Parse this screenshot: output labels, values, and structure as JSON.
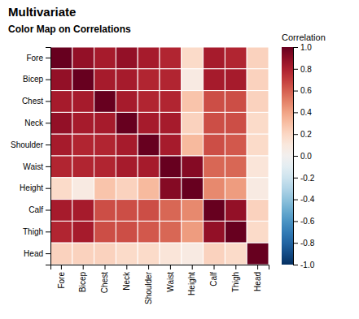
{
  "chart_data": {
    "type": "heatmap",
    "title": "Multivariate",
    "subtitle": "Color Map on Correlations",
    "categories": [
      "Fore",
      "Bicep",
      "Chest",
      "Neck",
      "Shoulder",
      "Waist",
      "Height",
      "Calf",
      "Thigh",
      "Head"
    ],
    "cells": [
      [
        1.0,
        0.88,
        0.82,
        0.88,
        0.82,
        0.78,
        0.18,
        0.82,
        0.78,
        0.22
      ],
      [
        0.88,
        1.0,
        0.82,
        0.82,
        0.78,
        0.78,
        0.08,
        0.82,
        0.82,
        0.22
      ],
      [
        0.82,
        0.82,
        1.0,
        0.82,
        0.78,
        0.78,
        0.28,
        0.65,
        0.65,
        0.22
      ],
      [
        0.88,
        0.82,
        0.82,
        1.0,
        0.82,
        0.82,
        0.22,
        0.65,
        0.65,
        0.18
      ],
      [
        0.82,
        0.78,
        0.78,
        0.82,
        1.0,
        0.82,
        0.32,
        0.65,
        0.62,
        0.18
      ],
      [
        0.78,
        0.78,
        0.78,
        0.82,
        0.82,
        1.0,
        0.92,
        0.58,
        0.58,
        0.12
      ],
      [
        0.18,
        0.08,
        0.28,
        0.22,
        0.32,
        0.92,
        1.0,
        0.48,
        0.42,
        0.08
      ],
      [
        0.82,
        0.82,
        0.65,
        0.65,
        0.65,
        0.58,
        0.48,
        1.0,
        0.88,
        0.22
      ],
      [
        0.78,
        0.82,
        0.65,
        0.65,
        0.62,
        0.58,
        0.42,
        0.88,
        1.0,
        0.18
      ],
      [
        0.22,
        0.22,
        0.22,
        0.18,
        0.18,
        0.12,
        0.08,
        0.22,
        0.18,
        1.0
      ]
    ],
    "colorbar_label": "Correlation",
    "colorbar_range": [
      -1.0,
      1.0
    ],
    "colorbar_ticks": [
      {
        "value": 1.0,
        "label": "1.0"
      },
      0.8,
      0.6,
      0.4,
      0.2,
      {
        "value": 0.0,
        "label": "0.0"
      },
      -0.2,
      -0.4,
      -0.6,
      -0.8,
      {
        "value": -1.0,
        "label": "-1.0"
      }
    ]
  }
}
